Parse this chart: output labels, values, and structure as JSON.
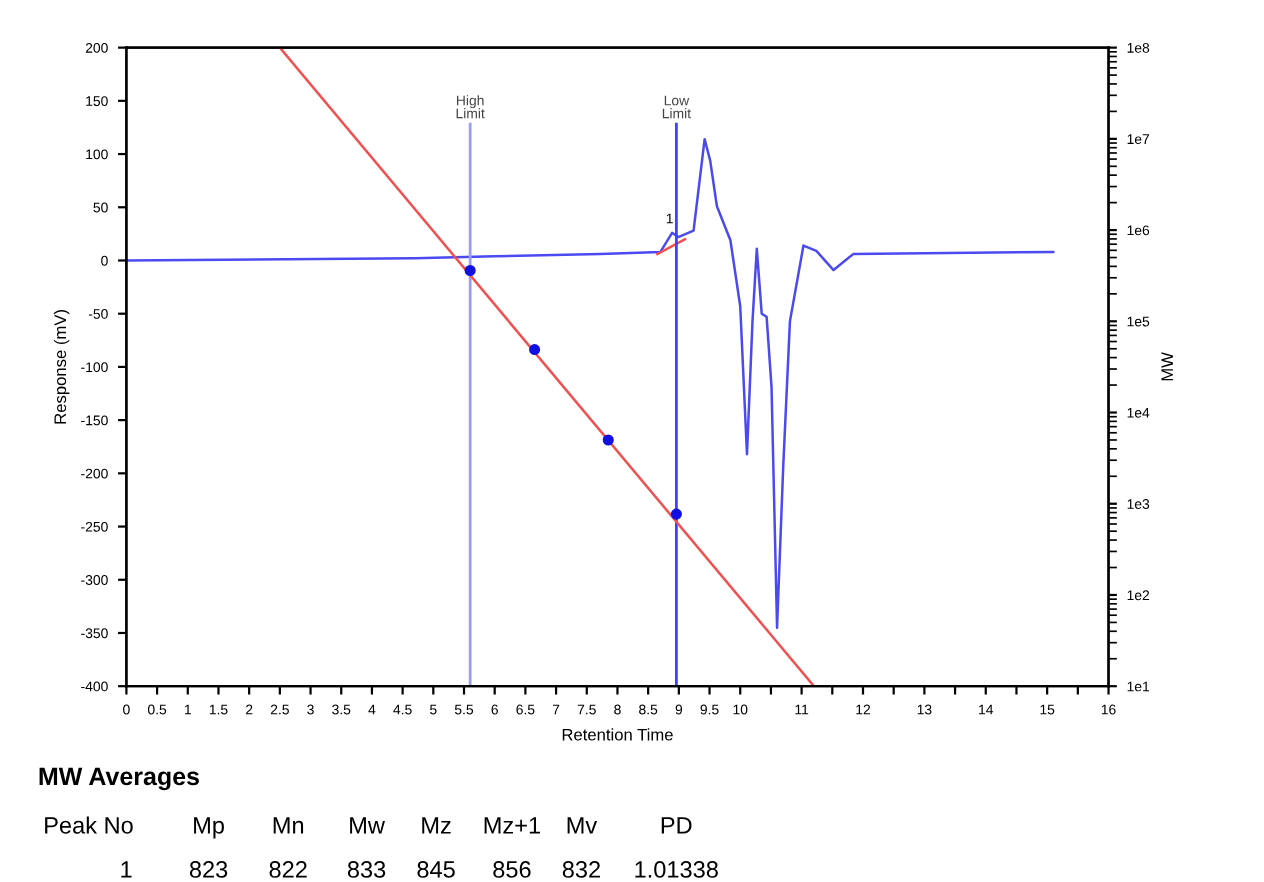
{
  "chart_data": {
    "type": "line",
    "xlabel": "Retention Time",
    "ylabel": "Response (mV)",
    "y2label": "MW",
    "xlim": [
      0,
      16
    ],
    "ylim": [
      -400,
      200
    ],
    "y2lim": [
      10,
      100000000
    ],
    "log": "y2",
    "grid": false,
    "xticks": [
      0,
      0.5,
      1,
      1.5,
      2,
      2.5,
      3,
      3.5,
      4,
      4.5,
      5,
      5.5,
      6,
      6.5,
      7,
      7.5,
      8,
      8.5,
      9,
      9.5,
      10,
      {
        "value": 10.5,
        "label": null
      },
      11,
      {
        "value": 11.5,
        "label": null
      },
      12,
      {
        "value": 12.5,
        "label": null
      },
      13,
      {
        "value": 13.5,
        "label": null
      },
      14,
      {
        "value": 14.5,
        "label": null
      },
      15,
      {
        "value": 15.5,
        "label": null
      },
      16
    ],
    "yticks": [
      -400,
      -350,
      -300,
      -250,
      -200,
      -150,
      -100,
      -50,
      0,
      50,
      100,
      150,
      200
    ],
    "y2ticks": [
      {
        "value": 10,
        "label": "1e1"
      },
      {
        "value": 100,
        "label": "1e2"
      },
      {
        "value": 1000,
        "label": "1e3"
      },
      {
        "value": 10000,
        "label": "1e4"
      },
      {
        "value": 100000,
        "label": "1e5"
      },
      {
        "value": 1000000,
        "label": "1e6"
      },
      {
        "value": 10000000,
        "label": "1e7"
      },
      {
        "value": 100000000,
        "label": "1e8"
      }
    ],
    "series": [
      {
        "color": "#4a4af0",
        "x": [
          0,
          4.7,
          6,
          7.72,
          8.7,
          8.89,
          8.99,
          9.24,
          9.42,
          9.51,
          9.62,
          9.84,
          10.0,
          10.11,
          10.2,
          10.27,
          10.35,
          10.43,
          10.51,
          10.6,
          10.7,
          10.81,
          11.03,
          11.24,
          11.52,
          11.84,
          15.1
        ],
        "values": [
          0,
          2,
          4,
          6,
          8,
          26,
          22,
          28,
          114,
          94,
          51,
          19,
          -43,
          -182,
          -57,
          11,
          -50,
          -53,
          -119,
          -345,
          -194,
          -57,
          14,
          9,
          -9,
          6,
          8
        ]
      },
      {
        "color": "#f05050",
        "x": [
          8.65,
          9.1
        ],
        "values": [
          6,
          20
        ]
      },
      {
        "color": "#f05050",
        "axis": "y2",
        "x": [
          2.5,
          11.2
        ],
        "values": [
          100000000,
          10
        ]
      },
      {
        "type": "scatter",
        "color": "#1010e0",
        "axis": "y2",
        "x": [
          5.6,
          6.65,
          7.85,
          8.96
        ],
        "values": [
          360000,
          49000,
          5000,
          770
        ]
      }
    ],
    "ref_lines": [
      {
        "axis": "x",
        "value": 5.6,
        "label": "High\nLimit",
        "color": "#9a9aff"
      },
      {
        "axis": "x",
        "value": 8.96,
        "label": "Low\nLimit",
        "color": "#4040ff"
      }
    ],
    "annotations": [
      {
        "text": "1",
        "x": 8.85,
        "y": 35
      },
      "MW Averages",
      "Peak No",
      "Mp",
      "Mn",
      "Mw",
      "Mz",
      "Mz+1",
      "Mv",
      "PD",
      "1",
      "823",
      "822",
      "833",
      "845",
      "856",
      "832",
      "1.01338"
    ]
  }
}
